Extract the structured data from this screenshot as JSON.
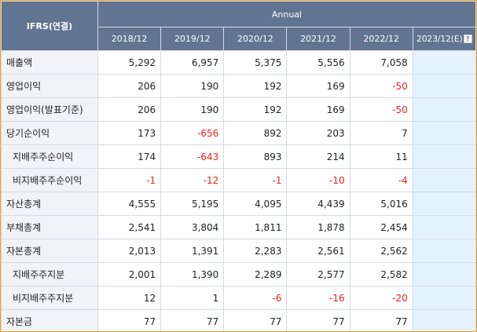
{
  "header": {
    "corner_label": "IFRS(연결)",
    "period_group": "Annual",
    "years": [
      "2018/12",
      "2019/12",
      "2020/12",
      "2021/12",
      "2022/12",
      "2023/12(E)"
    ],
    "help_icon_glyph": "?"
  },
  "rows": [
    {
      "label": "매출액",
      "indent": false,
      "values": [
        "5,292",
        "6,957",
        "5,375",
        "5,556",
        "7,058",
        ""
      ]
    },
    {
      "label": "영업이익",
      "indent": false,
      "values": [
        "206",
        "190",
        "192",
        "169",
        "-50",
        ""
      ]
    },
    {
      "label": "영업이익(발표기준)",
      "indent": false,
      "values": [
        "206",
        "190",
        "192",
        "169",
        "-50",
        ""
      ]
    },
    {
      "label": "당기순이익",
      "indent": false,
      "values": [
        "173",
        "-656",
        "892",
        "203",
        "7",
        ""
      ]
    },
    {
      "label": "지배주주순이익",
      "indent": true,
      "values": [
        "174",
        "-643",
        "893",
        "214",
        "11",
        ""
      ]
    },
    {
      "label": "비지배주주순이익",
      "indent": true,
      "values": [
        "-1",
        "-12",
        "-1",
        "-10",
        "-4",
        ""
      ]
    },
    {
      "label": "자산총계",
      "indent": false,
      "values": [
        "4,555",
        "5,195",
        "4,095",
        "4,439",
        "5,016",
        ""
      ]
    },
    {
      "label": "부채총계",
      "indent": false,
      "values": [
        "2,541",
        "3,804",
        "1,811",
        "1,878",
        "2,454",
        ""
      ]
    },
    {
      "label": "자본총계",
      "indent": false,
      "values": [
        "2,013",
        "1,391",
        "2,283",
        "2,561",
        "2,562",
        ""
      ]
    },
    {
      "label": "지배주주지분",
      "indent": true,
      "values": [
        "2,001",
        "1,390",
        "2,289",
        "2,577",
        "2,582",
        ""
      ]
    },
    {
      "label": "비지배주주지분",
      "indent": true,
      "values": [
        "12",
        "1",
        "-6",
        "-16",
        "-20",
        ""
      ]
    },
    {
      "label": "자본금",
      "indent": false,
      "values": [
        "77",
        "77",
        "77",
        "77",
        "77",
        ""
      ]
    }
  ],
  "colors": {
    "header_bg": "#617492",
    "label_bg": "#f1f3f7",
    "estimate_bg": "#e4f3fb",
    "negative_text": "#e8241c",
    "frame_border": "#f0a020"
  }
}
